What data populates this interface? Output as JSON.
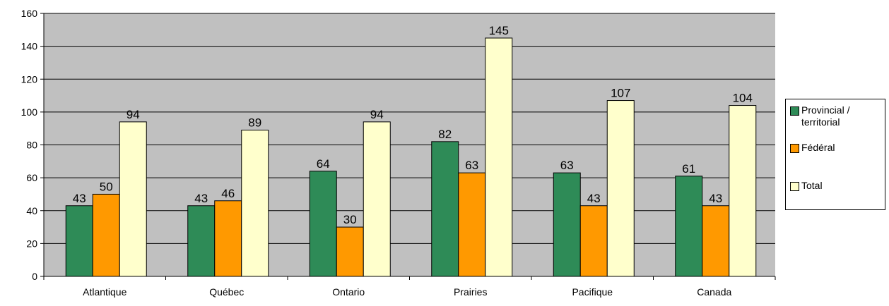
{
  "chart_data": {
    "type": "bar",
    "title": "",
    "xlabel": "",
    "ylabel": "",
    "ylim": [
      0,
      160
    ],
    "yticks": [
      0,
      20,
      40,
      60,
      80,
      100,
      120,
      140,
      160
    ],
    "grid": true,
    "legend_position": "right",
    "categories": [
      "Atlantique",
      "Québec",
      "Ontario",
      "Prairies",
      "Pacifique",
      "Canada"
    ],
    "series": [
      {
        "name": "Provincial /\nterritorial",
        "color": "#2e8b57",
        "values": [
          43,
          43,
          64,
          82,
          63,
          61
        ]
      },
      {
        "name": "Fédéral",
        "color": "#ff9900",
        "values": [
          50,
          46,
          30,
          63,
          43,
          43
        ]
      },
      {
        "name": "Total",
        "color": "#ffffcc",
        "values": [
          94,
          89,
          94,
          145,
          107,
          104
        ]
      }
    ],
    "plot_background": "#c0c0c0"
  }
}
